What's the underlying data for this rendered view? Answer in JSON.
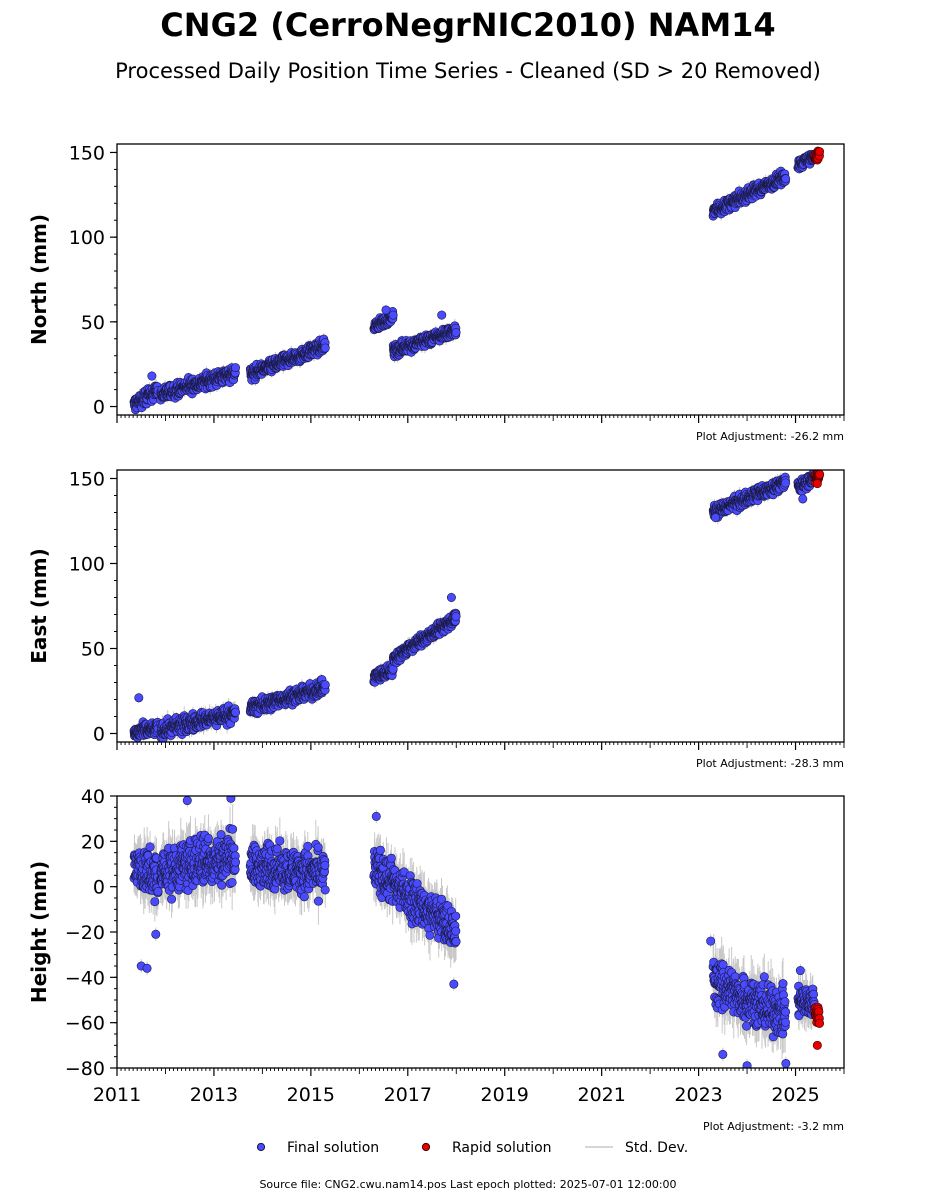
{
  "figure": {
    "title": "CNG2 (CerroNegrNIC2010) NAM14",
    "subtitle": "Processed Daily Position Time Series - Cleaned (SD > 20 Removed)",
    "source_text": "Source file: CNG2.cwu.nam14.pos  Last epoch plotted: 2025-07-01 12:00:00",
    "legend": {
      "final_label": "Final solution",
      "rapid_label": "Rapid solution",
      "std_label": "Std. Dev."
    },
    "colors": {
      "final": "#4a4aff",
      "final_edge": "#1a1a40",
      "rapid": "#e60000",
      "std": "#c8c8c8"
    }
  },
  "chart_data": [
    {
      "type": "scatter",
      "ylabel": "North (mm)",
      "adjustment": "Plot Adjustment: -26.2 mm",
      "xlim": [
        2011.0,
        2026.0
      ],
      "ylim": [
        -5,
        155
      ],
      "yticks": [
        0,
        50,
        100,
        150
      ],
      "yticklabels": [
        "0",
        "50",
        "100",
        "150"
      ],
      "segments": [
        {
          "series": "final",
          "t0": 2011.35,
          "t1": 2011.85,
          "v0": 1,
          "v1": 10,
          "noise": 3.5,
          "sd": 3
        },
        {
          "series": "final",
          "t0": 2011.9,
          "t1": 2013.45,
          "v0": 7,
          "v1": 20,
          "noise": 3.5,
          "sd": 3
        },
        {
          "series": "final",
          "t0": 2013.75,
          "t1": 2015.3,
          "v0": 19,
          "v1": 36,
          "noise": 3.0,
          "sd": 3
        },
        {
          "series": "final",
          "t0": 2016.3,
          "t1": 2016.7,
          "v0": 47,
          "v1": 53,
          "noise": 2.5,
          "sd": 2
        },
        {
          "series": "final",
          "t0": 2016.7,
          "t1": 2018.0,
          "v0": 33,
          "v1": 45,
          "noise": 3.0,
          "sd": 3
        },
        {
          "series": "final",
          "t0": 2023.3,
          "t1": 2024.8,
          "v0": 115,
          "v1": 136,
          "noise": 3.0,
          "sd": 3
        },
        {
          "series": "final",
          "t0": 2025.05,
          "t1": 2025.4,
          "v0": 143,
          "v1": 148,
          "noise": 2.5,
          "sd": 2
        },
        {
          "series": "rapid",
          "t0": 2025.4,
          "t1": 2025.5,
          "v0": 146,
          "v1": 150,
          "noise": 2.0,
          "sd": 0
        }
      ],
      "outliers": [
        {
          "series": "final",
          "t": 2011.72,
          "v": 18
        },
        {
          "series": "final",
          "t": 2017.7,
          "v": 54
        },
        {
          "series": "final",
          "t": 2016.55,
          "v": 57
        }
      ]
    },
    {
      "type": "scatter",
      "ylabel": "East (mm)",
      "adjustment": "Plot Adjustment: -28.3 mm",
      "xlim": [
        2011.0,
        2026.0
      ],
      "ylim": [
        -5,
        155
      ],
      "yticks": [
        0,
        50,
        100,
        150
      ],
      "yticklabels": [
        "0",
        "50",
        "100",
        "150"
      ],
      "segments": [
        {
          "series": "final",
          "t0": 2011.35,
          "t1": 2011.85,
          "v0": 0,
          "v1": 3,
          "noise": 3.5,
          "sd": 3
        },
        {
          "series": "final",
          "t0": 2011.9,
          "t1": 2013.45,
          "v0": 2,
          "v1": 12,
          "noise": 4.0,
          "sd": 4
        },
        {
          "series": "final",
          "t0": 2013.75,
          "t1": 2015.3,
          "v0": 15,
          "v1": 27,
          "noise": 3.5,
          "sd": 3
        },
        {
          "series": "final",
          "t0": 2016.3,
          "t1": 2016.7,
          "v0": 33,
          "v1": 38,
          "noise": 3.0,
          "sd": 3
        },
        {
          "series": "final",
          "t0": 2016.7,
          "t1": 2018.0,
          "v0": 44,
          "v1": 68,
          "noise": 3.0,
          "sd": 3
        },
        {
          "series": "final",
          "t0": 2023.3,
          "t1": 2024.8,
          "v0": 130,
          "v1": 148,
          "noise": 3.0,
          "sd": 3
        },
        {
          "series": "final",
          "t0": 2025.05,
          "t1": 2025.4,
          "v0": 145,
          "v1": 151,
          "noise": 3.0,
          "sd": 2
        },
        {
          "series": "rapid",
          "t0": 2025.4,
          "t1": 2025.5,
          "v0": 150,
          "v1": 152,
          "noise": 2.5,
          "sd": 0
        }
      ],
      "outliers": [
        {
          "series": "final",
          "t": 2011.45,
          "v": 21
        },
        {
          "series": "final",
          "t": 2017.9,
          "v": 80
        },
        {
          "series": "final",
          "t": 2023.35,
          "v": 127
        },
        {
          "series": "final",
          "t": 2025.15,
          "v": 138
        },
        {
          "series": "rapid",
          "t": 2025.45,
          "v": 147
        }
      ]
    },
    {
      "type": "scatter",
      "ylabel": "Height (mm)",
      "adjustment": "Plot Adjustment: -3.2 mm",
      "xlim": [
        2011.0,
        2026.0
      ],
      "ylim": [
        -80,
        40
      ],
      "yticks": [
        -80,
        -60,
        -40,
        -20,
        0,
        20,
        40
      ],
      "yticklabels": [
        "−80",
        "−60",
        "−40",
        "−20",
        "0",
        "20",
        "40"
      ],
      "xticks": [
        2011,
        2013,
        2015,
        2017,
        2019,
        2021,
        2023,
        2025
      ],
      "xticklabels": [
        "2011",
        "2013",
        "2015",
        "2017",
        "2019",
        "2021",
        "2023",
        "2025"
      ],
      "segments": [
        {
          "series": "final",
          "t0": 2011.35,
          "t1": 2011.85,
          "v0": 10,
          "v1": 2,
          "noise": 9,
          "sd": 9
        },
        {
          "series": "final",
          "t0": 2011.9,
          "t1": 2013.45,
          "v0": 6,
          "v1": 14,
          "noise": 9,
          "sd": 9
        },
        {
          "series": "final",
          "t0": 2013.75,
          "t1": 2015.3,
          "v0": 9,
          "v1": 6,
          "noise": 8,
          "sd": 8
        },
        {
          "series": "final",
          "t0": 2016.3,
          "t1": 2018.0,
          "v0": 8,
          "v1": -20,
          "noise": 8,
          "sd": 8
        },
        {
          "series": "final",
          "t0": 2023.3,
          "t1": 2024.8,
          "v0": -42,
          "v1": -57,
          "noise": 9,
          "sd": 9
        },
        {
          "series": "final",
          "t0": 2025.05,
          "t1": 2025.4,
          "v0": -50,
          "v1": -52,
          "noise": 6,
          "sd": 7
        },
        {
          "series": "rapid",
          "t0": 2025.4,
          "t1": 2025.5,
          "v0": -55,
          "v1": -57,
          "noise": 4,
          "sd": 0
        }
      ],
      "outliers": [
        {
          "series": "final",
          "t": 2011.5,
          "v": -35
        },
        {
          "series": "final",
          "t": 2011.62,
          "v": -36
        },
        {
          "series": "final",
          "t": 2011.8,
          "v": -21
        },
        {
          "series": "final",
          "t": 2012.45,
          "v": 38
        },
        {
          "series": "final",
          "t": 2013.35,
          "v": 39
        },
        {
          "series": "final",
          "t": 2016.35,
          "v": 31
        },
        {
          "series": "final",
          "t": 2017.95,
          "v": -43
        },
        {
          "series": "final",
          "t": 2023.25,
          "v": -24
        },
        {
          "series": "final",
          "t": 2023.5,
          "v": -74
        },
        {
          "series": "final",
          "t": 2024.0,
          "v": -79
        },
        {
          "series": "final",
          "t": 2024.8,
          "v": -78
        },
        {
          "series": "final",
          "t": 2025.1,
          "v": -37
        },
        {
          "series": "rapid",
          "t": 2025.45,
          "v": -70
        }
      ]
    }
  ]
}
